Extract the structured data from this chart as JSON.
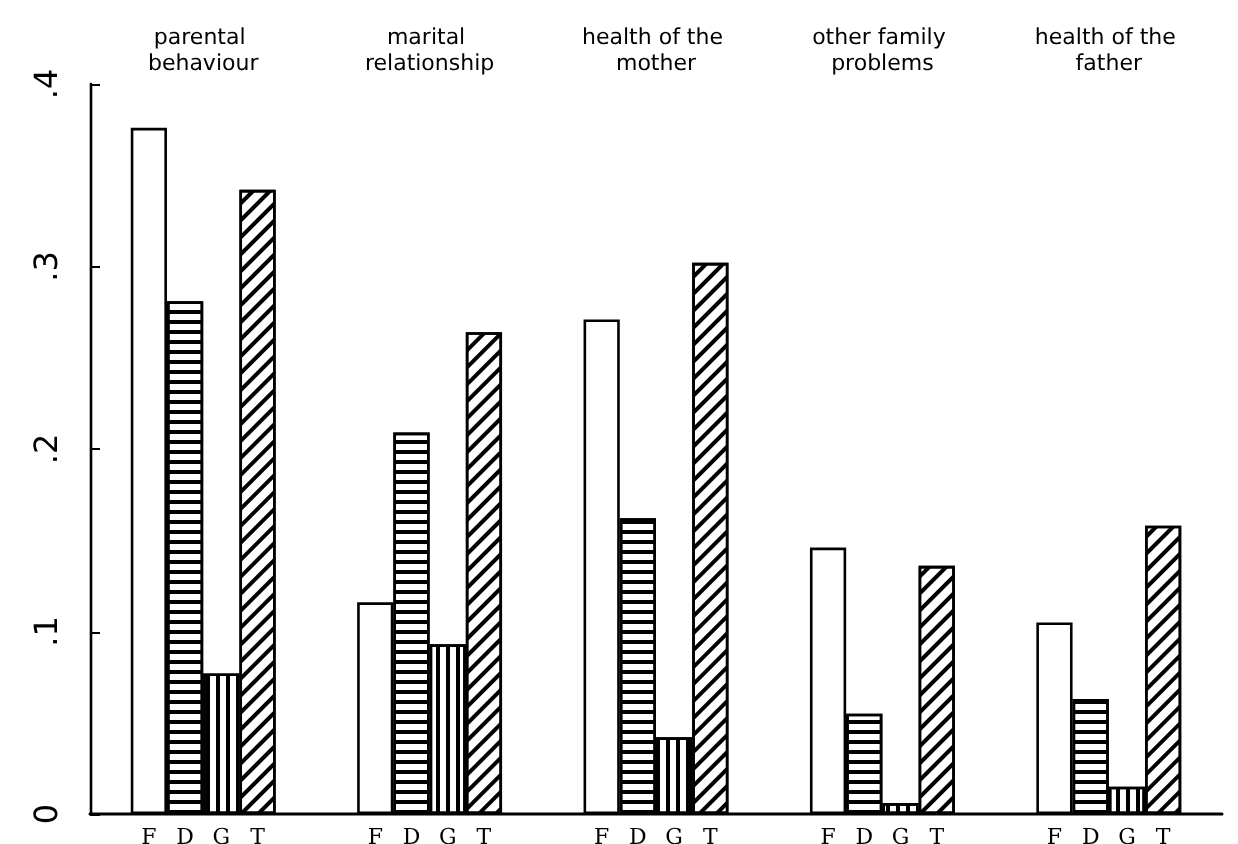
{
  "chart_data": {
    "type": "bar",
    "categories": [
      "parental behaviour",
      "marital relationship",
      "health of the mother",
      "other family problems",
      "health of the father"
    ],
    "series": [
      {
        "name": "F",
        "color": "#ffffff",
        "values": [
          0.376,
          0.116,
          0.271,
          0.146,
          0.105
        ]
      },
      {
        "name": "D",
        "color": "#ffffff",
        "values": [
          0.281,
          0.209,
          0.162,
          0.055,
          0.063
        ]
      },
      {
        "name": "G",
        "color": "#ffffff",
        "values": [
          0.077,
          0.093,
          0.042,
          0.006,
          0.015
        ]
      },
      {
        "name": "T",
        "color": "#ffffff",
        "values": [
          0.342,
          0.264,
          0.302,
          0.136,
          0.158
        ]
      }
    ],
    "ylim": [
      0,
      0.4
    ],
    "yticks": [
      {
        "value": 0,
        "label": "0"
      },
      {
        "value": 0.1,
        "label": ".1"
      },
      {
        "value": 0.2,
        "label": ".2"
      },
      {
        "value": 0.3,
        "label": ".3"
      },
      {
        "value": 0.4,
        "label": ".4"
      }
    ],
    "grid": false,
    "legend": false
  }
}
